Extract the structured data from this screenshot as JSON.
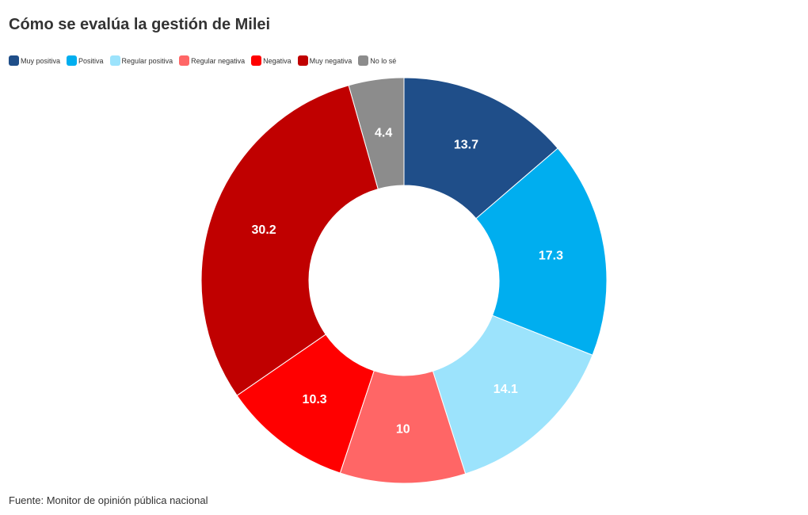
{
  "title": "Cómo se evalúa la gestión de Milei",
  "source": "Fuente: Monitor de opinión pública nacional",
  "chart_data": {
    "type": "pie",
    "subtype": "donut",
    "title": "Cómo se evalúa la gestión de Milei",
    "legend_position": "top-left",
    "categories": [
      "Muy positiva",
      "Positiva",
      "Regular positiva",
      "Regular negativa",
      "Negativa",
      "Muy negativa",
      "No lo sé"
    ],
    "values": [
      13.7,
      17.3,
      14.1,
      10,
      10.3,
      30.2,
      4.4
    ],
    "labels": [
      "13.7",
      "17.3",
      "14.1",
      "10",
      "10.3",
      "30.2",
      "4.4"
    ],
    "colors": [
      "#1f4e89",
      "#00aeef",
      "#9ce3fc",
      "#ff6666",
      "#ff0000",
      "#c00000",
      "#8c8c8c"
    ]
  }
}
